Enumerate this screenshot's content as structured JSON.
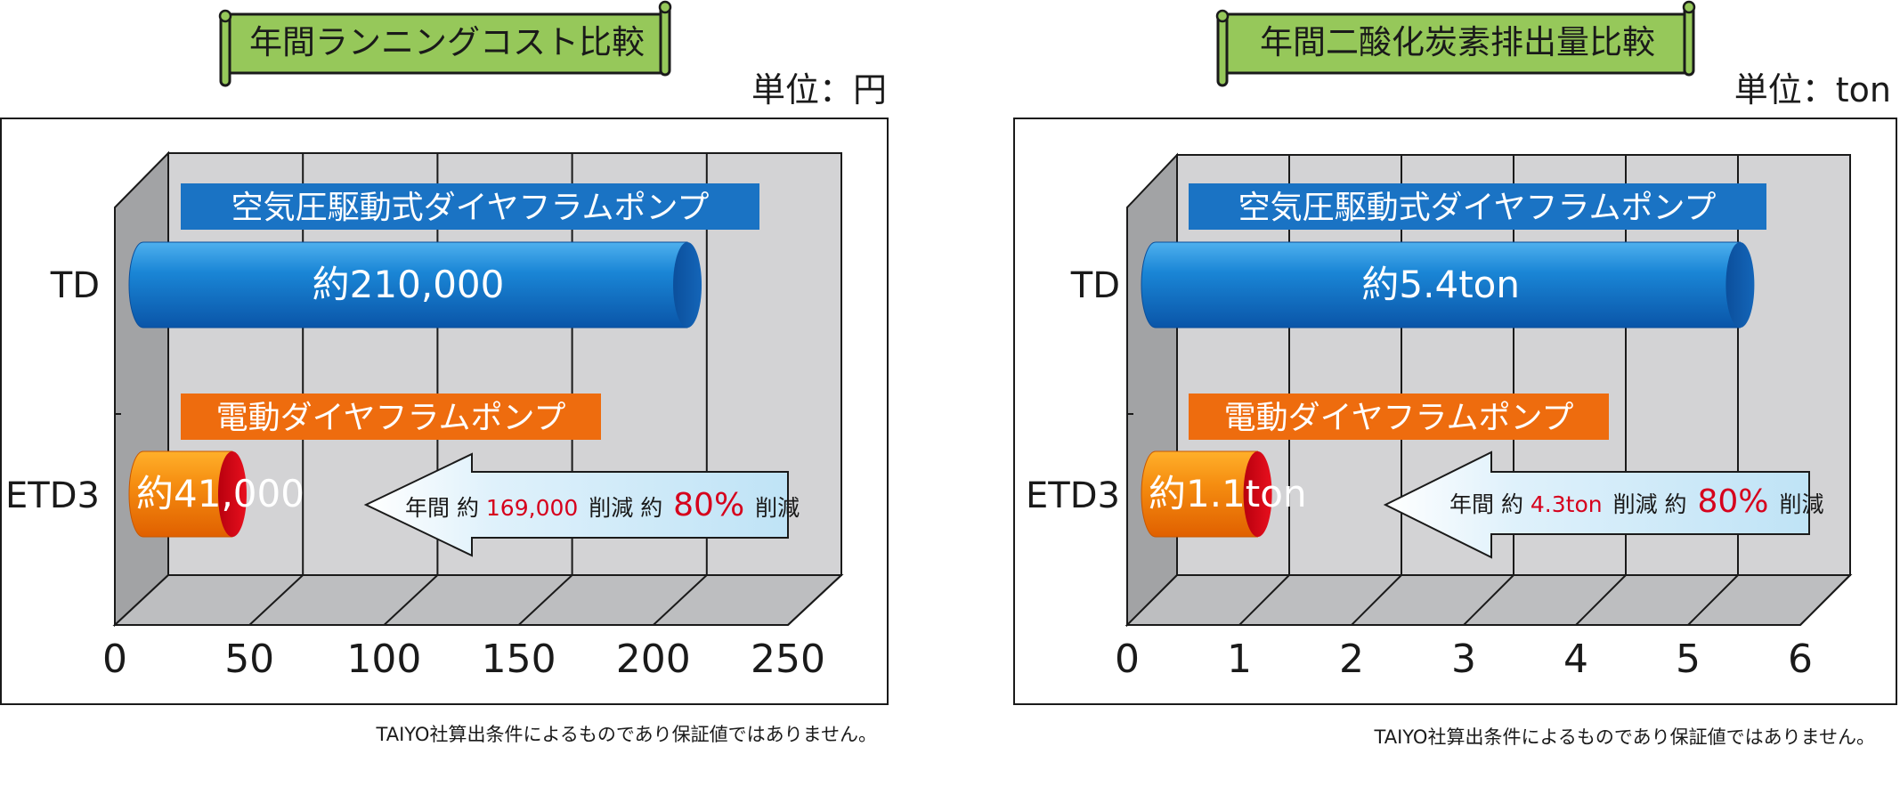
{
  "chart_data": [
    {
      "type": "bar",
      "title": "年間ランニングコスト比較",
      "unit_label": "単位：円",
      "categories": [
        "TD",
        "ETD3"
      ],
      "series": [
        {
          "name": "空気圧駆動式ダイヤフラムポンプ",
          "category": "TD",
          "value": 210000,
          "label": "約210,000"
        },
        {
          "name": "電動ダイヤフラムポンプ",
          "category": "ETD3",
          "value": 41000,
          "label": "約41,000"
        }
      ],
      "x_ticks": [
        "0",
        "50",
        "100",
        "150",
        "200",
        "250"
      ],
      "xlim": [
        0,
        250
      ],
      "x_scale_note": "axis in thousands of yen",
      "savings": {
        "prefix": "年間 約",
        "amount": "169,000",
        "mid": "削減 約",
        "percent": "80%",
        "suffix": "削減"
      },
      "footnote": "TAIYO社算出条件によるものであり保証値ではありません。",
      "colors": {
        "top_bar": "#1f7fce",
        "bottom_bar": "#f08a12",
        "top_label_bg": "#1a73c4",
        "bottom_label_bg": "#ee6c0e",
        "highlight": "#d6001c"
      }
    },
    {
      "type": "bar",
      "title": "年間二酸化炭素排出量比較",
      "unit_label": "単位：ton",
      "categories": [
        "TD",
        "ETD3"
      ],
      "series": [
        {
          "name": "空気圧駆動式ダイヤフラムポンプ",
          "category": "TD",
          "value": 5.4,
          "label": "約5.4ton"
        },
        {
          "name": "電動ダイヤフラムポンプ",
          "category": "ETD3",
          "value": 1.1,
          "label": "約1.1ton"
        }
      ],
      "x_ticks": [
        "0",
        "1",
        "2",
        "3",
        "4",
        "5",
        "6"
      ],
      "xlim": [
        0,
        6
      ],
      "savings": {
        "prefix": "年間 約",
        "amount": "4.3ton",
        "mid": "削減 約",
        "percent": "80%",
        "suffix": "削減"
      },
      "footnote": "TAIYO社算出条件によるものであり保証値ではありません。",
      "colors": {
        "top_bar": "#1f7fce",
        "bottom_bar": "#f08a12",
        "top_label_bg": "#1a73c4",
        "bottom_label_bg": "#ee6c0e",
        "highlight": "#d6001c"
      }
    }
  ]
}
